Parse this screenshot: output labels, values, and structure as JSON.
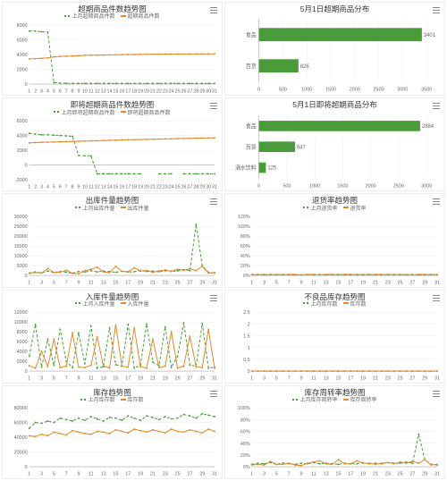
{
  "colors": {
    "green": "#4a9b3a",
    "orange": "#e08a2b",
    "grid": "#eeeeee",
    "axis": "#aaaaaa",
    "text": "#666666",
    "bg": "#ffffff"
  },
  "panels": [
    {
      "id": "expired_trend",
      "title": "超期商品件数趋势图",
      "type": "line",
      "legend": [
        {
          "label": "上月超期商品件数",
          "color": "#4a9b3a",
          "style": "dashed"
        },
        {
          "label": "超期商品件数",
          "color": "#e08a2b",
          "style": "solid"
        }
      ],
      "x": [
        1,
        2,
        3,
        4,
        5,
        6,
        7,
        8,
        9,
        10,
        11,
        12,
        13,
        14,
        15,
        16,
        17,
        18,
        19,
        20,
        21,
        22,
        23,
        24,
        25,
        26,
        27,
        28,
        29,
        30,
        31
      ],
      "ylim": [
        0,
        8000
      ],
      "ytick_step": 2000,
      "series": [
        {
          "color": "#4a9b3a",
          "dashed": true,
          "values": [
            7200,
            7200,
            7100,
            7050,
            200,
            150,
            100,
            90,
            90,
            90,
            90,
            90,
            90,
            90,
            90,
            90,
            90,
            90,
            90,
            90,
            90,
            90,
            90,
            90,
            90,
            90,
            90,
            90,
            90,
            90,
            90
          ]
        },
        {
          "color": "#e08a2b",
          "dashed": false,
          "values": [
            3400,
            3450,
            3500,
            3550,
            3700,
            3750,
            3780,
            3800,
            3850,
            3900,
            3920,
            3930,
            3940,
            3960,
            3980,
            4000,
            4010,
            4020,
            4030,
            4040,
            4050,
            4060,
            4065,
            4070,
            4075,
            4080,
            4085,
            4090,
            4095,
            4100,
            4100
          ]
        }
      ]
    },
    {
      "id": "expired_dist",
      "title": "5月1日超期商品分布",
      "type": "hbar",
      "xlim": [
        0,
        3500
      ],
      "xtick_step": 500,
      "categories": [
        "食品",
        "百货"
      ],
      "values": [
        3401,
        826
      ],
      "color": "#4a9b3a"
    },
    {
      "id": "soon_expired_trend",
      "title": "即将超期商品件数趋势图",
      "type": "line",
      "legend": [
        {
          "label": "上月即将超期商品件数",
          "color": "#4a9b3a",
          "style": "dashed"
        },
        {
          "label": "即将超期商品件数",
          "color": "#e08a2b",
          "style": "solid"
        }
      ],
      "x": [
        1,
        2,
        3,
        4,
        5,
        6,
        7,
        8,
        9,
        10,
        11,
        12,
        13,
        14,
        15,
        16,
        17,
        18,
        19,
        20,
        21,
        22,
        23,
        24,
        25,
        26,
        27,
        28,
        29,
        30,
        31
      ],
      "ylim": [
        -2000,
        6000
      ],
      "ytick_step": 2000,
      "series": [
        {
          "color": "#4a9b3a",
          "dashed": true,
          "values": [
            4300,
            4200,
            4100,
            4100,
            4050,
            4000,
            3950,
            3900,
            1300,
            1250,
            1250,
            -1200,
            -1200,
            -1200,
            -1200,
            -1200,
            -1200,
            -1200,
            -1200,
            null,
            null,
            -1200,
            -1200,
            -1200,
            null,
            -1200,
            -1200,
            -1200,
            -1200,
            -1200,
            -1200
          ]
        },
        {
          "color": "#e08a2b",
          "dashed": false,
          "values": [
            3000,
            3050,
            3080,
            3100,
            3120,
            3150,
            3170,
            3200,
            3220,
            3250,
            3280,
            3300,
            3320,
            3350,
            3370,
            3400,
            3420,
            3440,
            3460,
            3480,
            3500,
            3520,
            3540,
            3560,
            3580,
            3600,
            3620,
            3640,
            3660,
            3680,
            3700
          ]
        }
      ]
    },
    {
      "id": "soon_expired_dist",
      "title": "5月1日即将超期商品分布",
      "type": "hbar",
      "xlim": [
        0,
        3000
      ],
      "xtick_step": 500,
      "categories": [
        "食品",
        "百货",
        "酒水饮料"
      ],
      "values": [
        2884,
        647,
        125
      ],
      "color": "#4a9b3a"
    },
    {
      "id": "out_qty_trend",
      "title": "出库件量趋势图",
      "type": "line",
      "legend": [
        {
          "label": "上月出库件量",
          "color": "#4a9b3a",
          "style": "dashed"
        },
        {
          "label": "出库件量",
          "color": "#e08a2b",
          "style": "solid"
        }
      ],
      "x": [
        1,
        3,
        5,
        7,
        9,
        11,
        13,
        15,
        17,
        19,
        21,
        23,
        25,
        27,
        29,
        31
      ],
      "x_full": [
        1,
        2,
        3,
        4,
        5,
        6,
        7,
        8,
        9,
        10,
        11,
        12,
        13,
        14,
        15,
        16,
        17,
        18,
        19,
        20,
        21,
        22,
        23,
        24,
        25,
        26,
        27,
        28,
        29,
        30,
        31
      ],
      "ylim": [
        0,
        30000
      ],
      "ytick_step": 5000,
      "series": [
        {
          "color": "#4a9b3a",
          "dashed": true,
          "values": [
            1200,
            1800,
            1300,
            2200,
            1500,
            2000,
            1600,
            1100,
            2000,
            1700,
            2400,
            1800,
            2200,
            1900,
            1600,
            2100,
            1700,
            1900,
            2500,
            2000,
            2200,
            1900,
            2400,
            2100,
            2300,
            3000,
            2400,
            26000,
            5000,
            1500,
            1200
          ]
        },
        {
          "color": "#e08a2b",
          "dashed": false,
          "values": [
            1000,
            1500,
            1200,
            3500,
            1400,
            1600,
            2600,
            1100,
            900,
            2400,
            3100,
            4200,
            1800,
            1400,
            4600,
            2100,
            1900,
            3900,
            2200,
            2500,
            1600,
            2300,
            2800,
            2100,
            3100,
            2600,
            3400,
            2400,
            4700,
            1200,
            1400
          ]
        }
      ]
    },
    {
      "id": "return_rate_trend",
      "title": "退货率趋势图",
      "type": "line",
      "legend": [
        {
          "label": "上月退货率",
          "color": "#4a9b3a",
          "style": "dashed"
        },
        {
          "label": "退货率",
          "color": "#e08a2b",
          "style": "solid"
        }
      ],
      "x": [
        1,
        3,
        5,
        7,
        9,
        11,
        13,
        15,
        17,
        19,
        21,
        23,
        25,
        27,
        29,
        31
      ],
      "x_full": [
        1,
        2,
        3,
        4,
        5,
        6,
        7,
        8,
        9,
        10,
        11,
        12,
        13,
        14,
        15,
        16,
        17,
        18,
        19,
        20,
        21,
        22,
        23,
        24,
        25,
        26,
        27,
        28,
        29,
        30,
        31
      ],
      "ylim": [
        0,
        120
      ],
      "ytick_step": 20,
      "ysuffix": "%",
      "series": [
        {
          "color": "#4a9b3a",
          "dashed": true,
          "values": [
            1,
            2,
            1,
            2,
            1,
            2,
            1,
            1,
            1,
            2,
            1,
            2,
            1,
            1,
            2,
            1,
            1,
            2,
            1,
            2,
            1,
            1,
            2,
            1,
            2,
            1,
            2,
            1,
            1,
            2,
            1
          ]
        },
        {
          "color": "#e08a2b",
          "dashed": false,
          "values": [
            2,
            1,
            2,
            1,
            2,
            1,
            2,
            2,
            1,
            2,
            2,
            1,
            2,
            2,
            1,
            2,
            2,
            1,
            2,
            1,
            2,
            2,
            1,
            2,
            1,
            2,
            1,
            2,
            2,
            1,
            2
          ]
        }
      ]
    },
    {
      "id": "in_qty_trend",
      "title": "入库件量趋势图",
      "type": "line",
      "legend": [
        {
          "label": "上月入库件量",
          "color": "#4a9b3a",
          "style": "dashed"
        },
        {
          "label": "入库件量",
          "color": "#e08a2b",
          "style": "solid"
        }
      ],
      "x": [
        1,
        3,
        5,
        7,
        9,
        11,
        13,
        15,
        17,
        19,
        21,
        23,
        25,
        27,
        29,
        31
      ],
      "x_full": [
        1,
        2,
        3,
        4,
        5,
        6,
        7,
        8,
        9,
        10,
        11,
        12,
        13,
        14,
        15,
        16,
        17,
        18,
        19,
        20,
        21,
        22,
        23,
        24,
        25,
        26,
        27,
        28,
        29,
        30,
        31
      ],
      "ylim": [
        0,
        12000
      ],
      "ytick_step": 2000,
      "series": [
        {
          "color": "#4a9b3a",
          "dashed": true,
          "values": [
            3000,
            9500,
            800,
            6500,
            1200,
            8500,
            2000,
            700,
            7800,
            1500,
            9200,
            600,
            900,
            8800,
            1300,
            1000,
            9500,
            600,
            1200,
            9600,
            1800,
            1100,
            9000,
            700,
            3000,
            9800,
            1200,
            1000,
            9700,
            600,
            800
          ]
        },
        {
          "color": "#e08a2b",
          "dashed": false,
          "values": [
            1100,
            600,
            4000,
            900,
            6500,
            700,
            1000,
            7800,
            800,
            700,
            1200,
            7000,
            1100,
            600,
            9400,
            1000,
            800,
            8800,
            900,
            600,
            6500,
            700,
            1000,
            8000,
            600,
            1000,
            7100,
            900,
            700,
            8500,
            600
          ]
        }
      ]
    },
    {
      "id": "defect_stock_trend",
      "title": "不良品库存趋势图",
      "type": "line",
      "legend": [
        {
          "label": "上月库存数",
          "color": "#4a9b3a",
          "style": "dashed"
        },
        {
          "label": "库存数",
          "color": "#e08a2b",
          "style": "solid"
        }
      ],
      "x": [
        1,
        3,
        5,
        7,
        9,
        11,
        13,
        15,
        17,
        19,
        21,
        23,
        25,
        27,
        29,
        31
      ],
      "x_full": [
        1,
        2,
        3,
        4,
        5,
        6,
        7,
        8,
        9,
        10,
        11,
        12,
        13,
        14,
        15,
        16,
        17,
        18,
        19,
        20,
        21,
        22,
        23,
        24,
        25,
        26,
        27,
        28,
        29,
        30,
        31
      ],
      "ylim": [
        0,
        2.5
      ],
      "ytick_step": 0.5,
      "series": [
        {
          "color": "#4a9b3a",
          "dashed": true,
          "values": [
            0,
            0,
            0,
            0,
            0,
            0,
            0,
            0,
            0,
            0,
            0,
            0,
            0,
            0,
            0,
            0,
            0,
            0,
            0,
            0,
            0,
            0,
            0,
            0,
            0,
            0,
            0,
            0,
            0,
            0,
            0
          ]
        },
        {
          "color": "#e08a2b",
          "dashed": false,
          "values": [
            0,
            0,
            0,
            0,
            0,
            0,
            0,
            0,
            0,
            0,
            0,
            0,
            0,
            0,
            0,
            0,
            0,
            0,
            0,
            0,
            0,
            0,
            0,
            0,
            0,
            0,
            0,
            0,
            0,
            0,
            0
          ]
        }
      ]
    },
    {
      "id": "stock_trend",
      "title": "库存趋势图",
      "type": "line",
      "legend": [
        {
          "label": "上月库存数",
          "color": "#4a9b3a",
          "style": "dashed"
        },
        {
          "label": "库存数",
          "color": "#e08a2b",
          "style": "solid"
        }
      ],
      "x": [
        1,
        3,
        5,
        7,
        9,
        11,
        13,
        15,
        17,
        19,
        21,
        23,
        25,
        27,
        29,
        31
      ],
      "x_full": [
        1,
        2,
        3,
        4,
        5,
        6,
        7,
        8,
        9,
        10,
        11,
        12,
        13,
        14,
        15,
        16,
        17,
        18,
        19,
        20,
        21,
        22,
        23,
        24,
        25,
        26,
        27,
        28,
        29,
        30,
        31
      ],
      "ylim": [
        0,
        80000
      ],
      "ytick_step": 20000,
      "series": [
        {
          "color": "#4a9b3a",
          "dashed": true,
          "values": [
            52000,
            60000,
            59000,
            62000,
            60000,
            66000,
            64000,
            62000,
            66000,
            63000,
            68000,
            65000,
            62000,
            67000,
            66000,
            63000,
            69000,
            66000,
            63000,
            69000,
            67000,
            64000,
            68000,
            65000,
            66000,
            71000,
            69000,
            66000,
            72000,
            70000,
            68000
          ]
        },
        {
          "color": "#e08a2b",
          "dashed": false,
          "values": [
            42000,
            41000,
            44000,
            42000,
            47000,
            45000,
            43000,
            49000,
            47000,
            45000,
            44000,
            48000,
            47000,
            45000,
            50000,
            48000,
            46000,
            51000,
            49000,
            47000,
            50000,
            48000,
            46000,
            51000,
            48000,
            47000,
            50000,
            48000,
            46000,
            51000,
            48000
          ]
        }
      ]
    },
    {
      "id": "turnover_trend",
      "title": "库存周转率趋势图",
      "type": "line",
      "legend": [
        {
          "label": "上月库存周转率",
          "color": "#4a9b3a",
          "style": "dashed"
        },
        {
          "label": "库存周转率",
          "color": "#e08a2b",
          "style": "solid"
        }
      ],
      "x": [
        1,
        3,
        5,
        7,
        9,
        11,
        13,
        15,
        17,
        19,
        21,
        23,
        25,
        27,
        29,
        31
      ],
      "x_full": [
        1,
        2,
        3,
        4,
        5,
        6,
        7,
        8,
        9,
        10,
        11,
        12,
        13,
        14,
        15,
        16,
        17,
        18,
        19,
        20,
        21,
        22,
        23,
        24,
        25,
        26,
        27,
        28,
        29,
        30,
        31
      ],
      "ylim": [
        0,
        100
      ],
      "ytick_step": 20,
      "ysuffix": "%",
      "series": [
        {
          "color": "#4a9b3a",
          "dashed": true,
          "values": [
            4,
            6,
            5,
            7,
            4,
            6,
            5,
            4,
            6,
            5,
            7,
            5,
            6,
            5,
            4,
            6,
            5,
            5,
            7,
            5,
            6,
            5,
            7,
            6,
            6,
            8,
            6,
            55,
            12,
            4,
            3
          ]
        },
        {
          "color": "#e08a2b",
          "dashed": false,
          "values": [
            3,
            4,
            3,
            9,
            4,
            4,
            6,
            3,
            2,
            6,
            8,
            10,
            5,
            4,
            12,
            5,
            5,
            10,
            6,
            6,
            4,
            6,
            7,
            5,
            8,
            6,
            9,
            6,
            12,
            3,
            4
          ]
        }
      ]
    }
  ]
}
